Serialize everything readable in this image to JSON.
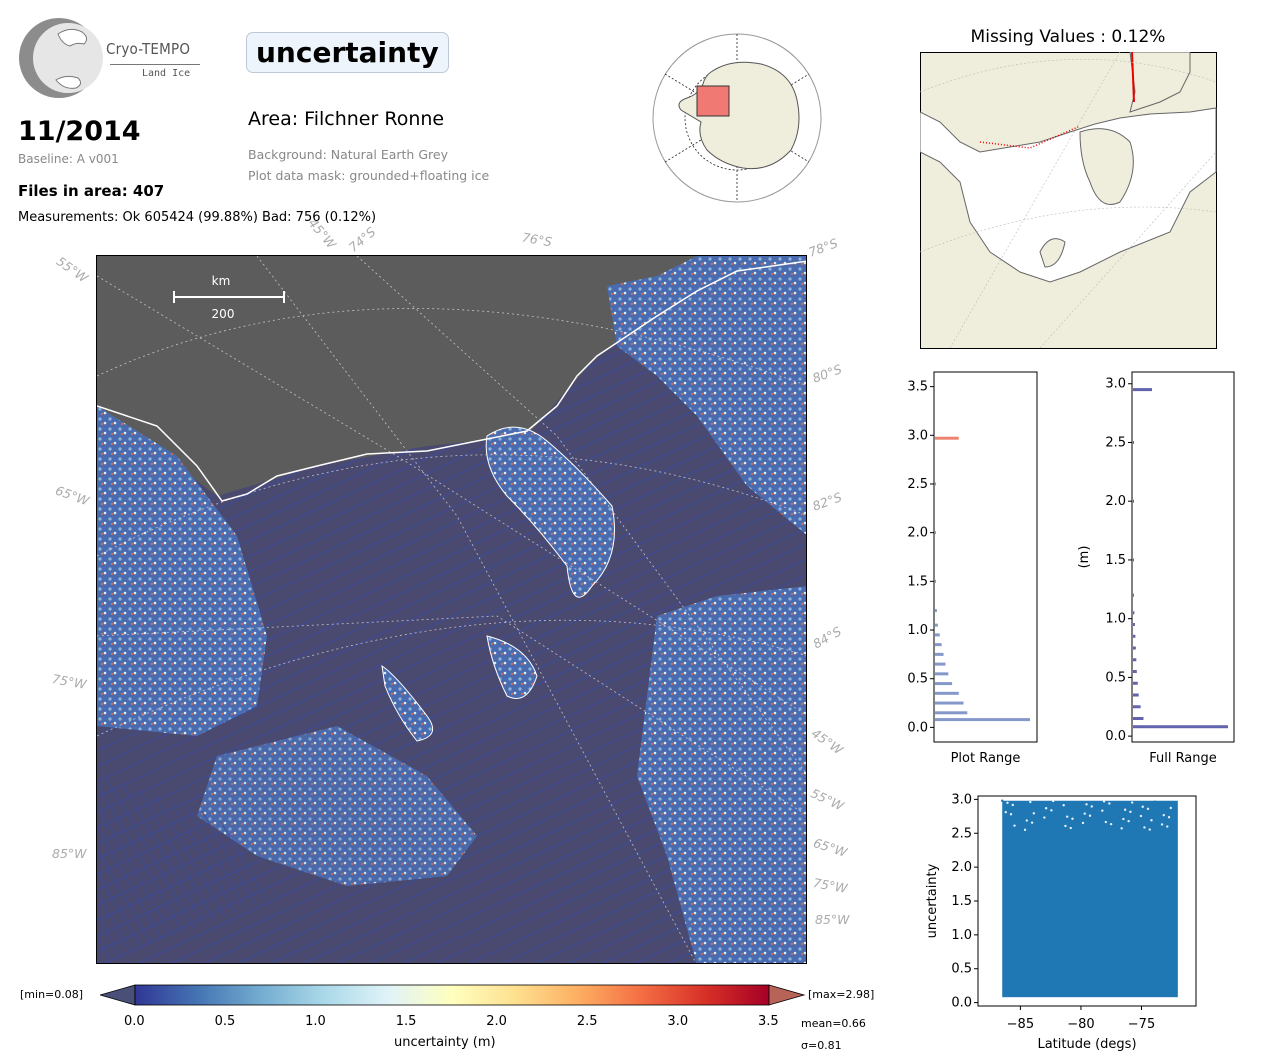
{
  "logo": {
    "brand": "Cryo-TEMPO",
    "sub": "Land Ice"
  },
  "header": {
    "variable": "uncertainty",
    "date": "11/2014",
    "baseline": "Baseline: A v001",
    "files": "Files in area: 407",
    "measurements": "Measurements: Ok 605424 (99.88%) Bad: 756 (0.12%)",
    "area": "Area: Filchner Ronne",
    "background": "Background: Natural Earth Grey",
    "mask": "Plot data mask: grounded+floating ice"
  },
  "missing_title": "Missing Values : 0.12%",
  "scale_bar": {
    "unit": "km",
    "value": "200"
  },
  "map_labels": {
    "lon_left": [
      "55°W",
      "65°W",
      "75°W",
      "85°W"
    ],
    "lon_top": [
      "45°W",
      "74°S",
      "76°S",
      "78°S"
    ],
    "lat_right": [
      "80°S",
      "82°S",
      "84°S"
    ],
    "lon_right": [
      "45°W",
      "55°W",
      "65°W",
      "75°W",
      "85°W"
    ]
  },
  "colorbar": {
    "min_label": "[min=0.08]",
    "max_label": "[max=2.98]",
    "ticks": [
      "0.0",
      "0.5",
      "1.0",
      "1.5",
      "2.0",
      "2.5",
      "3.0",
      "3.5"
    ],
    "label": "uncertainty (m)",
    "mean": "mean=0.66",
    "sigma": "σ=0.81",
    "colors": [
      "#313695",
      "#4575b4",
      "#74add1",
      "#abd9e9",
      "#e0f3f8",
      "#ffffbf",
      "#fee090",
      "#fdae61",
      "#f46d43",
      "#d73027",
      "#a50026"
    ]
  },
  "chart_data": [
    {
      "type": "bar",
      "name": "histogram-plot-range",
      "xlabel": "Plot Range",
      "ylabel": "",
      "ylim": [
        -0.15,
        3.65
      ],
      "yticks": [
        "0.0",
        "0.5",
        "1.0",
        "1.5",
        "2.0",
        "2.5",
        "3.0",
        "3.5"
      ],
      "orientation": "horizontal",
      "bins": [
        0.08,
        0.15,
        0.25,
        0.35,
        0.45,
        0.55,
        0.65,
        0.75,
        0.85,
        0.95,
        1.05,
        1.2,
        1.5,
        2.0,
        2.5,
        2.97
      ],
      "relative_counts": [
        1.0,
        0.34,
        0.3,
        0.25,
        0.18,
        0.14,
        0.11,
        0.09,
        0.07,
        0.05,
        0.03,
        0.02,
        0.01,
        0.005,
        0.005,
        0.25
      ]
    },
    {
      "type": "bar",
      "name": "histogram-full-range",
      "xlabel": "Full Range",
      "ylabel": "(m)",
      "ylim": [
        -0.05,
        3.1
      ],
      "yticks": [
        "0.0",
        "0.5",
        "1.0",
        "1.5",
        "2.0",
        "2.5",
        "3.0"
      ],
      "orientation": "horizontal",
      "bins": [
        0.08,
        0.15,
        0.25,
        0.35,
        0.45,
        0.55,
        0.65,
        0.75,
        0.85,
        0.95,
        1.05,
        1.2,
        1.5,
        2.0,
        2.5,
        2.95
      ],
      "relative_counts": [
        1.0,
        0.11,
        0.08,
        0.06,
        0.05,
        0.04,
        0.035,
        0.03,
        0.025,
        0.02,
        0.015,
        0.01,
        0.01,
        0.008,
        0.005,
        0.2
      ]
    },
    {
      "type": "scatter",
      "name": "scatter-uncertainty-latitude",
      "xlabel": "Latitude (degs)",
      "ylabel": "uncertainty",
      "xlim": [
        -88.5,
        -70.5
      ],
      "ylim": [
        -0.05,
        3.05
      ],
      "xticks": [
        "−85",
        "−80",
        "−75"
      ],
      "yticks": [
        "0.0",
        "0.5",
        "1.0",
        "1.5",
        "2.0",
        "2.5",
        "3.0"
      ],
      "x_range": [
        -86.5,
        -72
      ],
      "y_range": [
        0.08,
        2.98
      ]
    }
  ]
}
